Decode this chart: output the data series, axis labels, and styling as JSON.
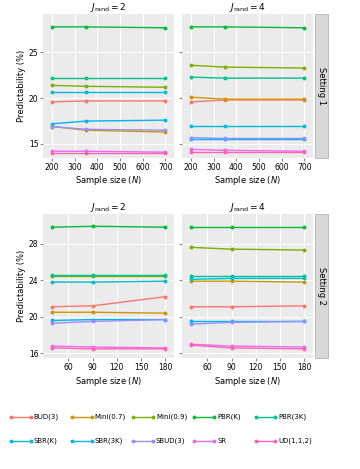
{
  "setting1": {
    "x": [
      200,
      350,
      700
    ],
    "jrand2": {
      "PBR(K)": [
        27.8,
        27.8,
        27.7
      ],
      "PBR(3K)": [
        22.2,
        22.2,
        22.2
      ],
      "Mini(0.9)": [
        21.4,
        21.3,
        21.2
      ],
      "SBR(K)": [
        20.7,
        20.7,
        20.7
      ],
      "BUD(3)": [
        19.6,
        19.7,
        19.7
      ],
      "SBR(3K)": [
        17.2,
        17.5,
        17.6
      ],
      "SBUD(3)": [
        16.9,
        16.6,
        16.5
      ],
      "Mini(0.7)": [
        16.9,
        16.5,
        16.3
      ],
      "SR": [
        14.2,
        14.2,
        14.1
      ],
      "UD(1,1,2)": [
        14.0,
        14.0,
        14.0
      ]
    },
    "jrand4": {
      "PBR(K)": [
        27.8,
        27.8,
        27.7
      ],
      "Mini(0.9)": [
        23.6,
        23.4,
        23.3
      ],
      "PBR(3K)": [
        22.3,
        22.2,
        22.2
      ],
      "Mini(0.7)": [
        20.1,
        19.9,
        19.9
      ],
      "BUD(3)": [
        19.6,
        19.8,
        19.8
      ],
      "SBR(K)": [
        17.0,
        17.0,
        17.0
      ],
      "SBUD(3)": [
        15.7,
        15.6,
        15.6
      ],
      "SBR(3K)": [
        15.5,
        15.5,
        15.5
      ],
      "SR": [
        14.4,
        14.3,
        14.2
      ],
      "UD(1,1,2)": [
        14.1,
        14.1,
        14.1
      ]
    }
  },
  "setting2": {
    "x": [
      40,
      90,
      180
    ],
    "jrand2": {
      "PBR(K)": [
        29.8,
        29.9,
        29.8
      ],
      "PBR(3K)": [
        24.6,
        24.6,
        24.6
      ],
      "Mini(0.9)": [
        24.5,
        24.5,
        24.5
      ],
      "SBR(K)": [
        23.8,
        23.8,
        23.9
      ],
      "BUD(3)": [
        21.1,
        21.2,
        22.2
      ],
      "Mini(0.7)": [
        20.5,
        20.5,
        20.4
      ],
      "SBR(3K)": [
        19.6,
        19.7,
        19.7
      ],
      "SBUD(3)": [
        19.3,
        19.5,
        19.7
      ],
      "SR": [
        16.8,
        16.7,
        16.6
      ],
      "UD(1,1,2)": [
        16.6,
        16.5,
        16.5
      ]
    },
    "jrand4": {
      "PBR(K)": [
        29.8,
        29.8,
        29.8
      ],
      "Mini(0.9)": [
        27.6,
        27.4,
        27.3
      ],
      "PBR(3K)": [
        24.5,
        24.5,
        24.5
      ],
      "SBR(K)": [
        24.1,
        24.2,
        24.2
      ],
      "Mini(0.7)": [
        23.9,
        23.9,
        23.8
      ],
      "BUD(3)": [
        21.1,
        21.1,
        21.2
      ],
      "SBR(3K)": [
        19.5,
        19.5,
        19.5
      ],
      "SBUD(3)": [
        19.2,
        19.4,
        19.5
      ],
      "SR": [
        17.0,
        16.8,
        16.7
      ],
      "UD(1,1,2)": [
        16.9,
        16.6,
        16.5
      ]
    }
  },
  "colors": {
    "BUD(3)": "#F8766D",
    "Mini(0.7)": "#CD9600",
    "Mini(0.9)": "#7CAE00",
    "PBR(K)": "#00BA38",
    "PBR(3K)": "#00C08B",
    "SBR(K)": "#00BCD8",
    "SBR(3K)": "#00B4F0",
    "SBUD(3)": "#9590FF",
    "SR": "#EA6AF0",
    "UD(1,1,2)": "#FF64B0"
  },
  "ylim_s1": [
    13.5,
    29.2
  ],
  "ylim_s2": [
    15.5,
    31.2
  ],
  "yticks_s1": [
    15,
    20,
    25
  ],
  "yticks_s2": [
    16,
    20,
    24,
    28
  ],
  "xticks_s1": [
    200,
    300,
    400,
    500,
    600,
    700
  ],
  "xticks_s2": [
    60,
    90,
    120,
    150,
    180
  ],
  "ylabel": "Predictability (%)",
  "xlabel_s1": "Sample size (N)",
  "xlabel_s2": "Sample size (N)",
  "bg_color": "#EBEBEB",
  "panel_label_s1": "Setting 1",
  "panel_label_s2": "Setting 2",
  "jrand2_title": "J_rand = 2",
  "jrand4_title": "J_rand = 4",
  "legend_row1": [
    "BUD(3)",
    "Mini(0.7)",
    "Mini(0.9)",
    "PBR(K)",
    "PBR(3K)"
  ],
  "legend_row2": [
    "SBR(K)",
    "SBR(3K)",
    "SBUD(3)",
    "SR",
    "UD(1,1,2)"
  ]
}
